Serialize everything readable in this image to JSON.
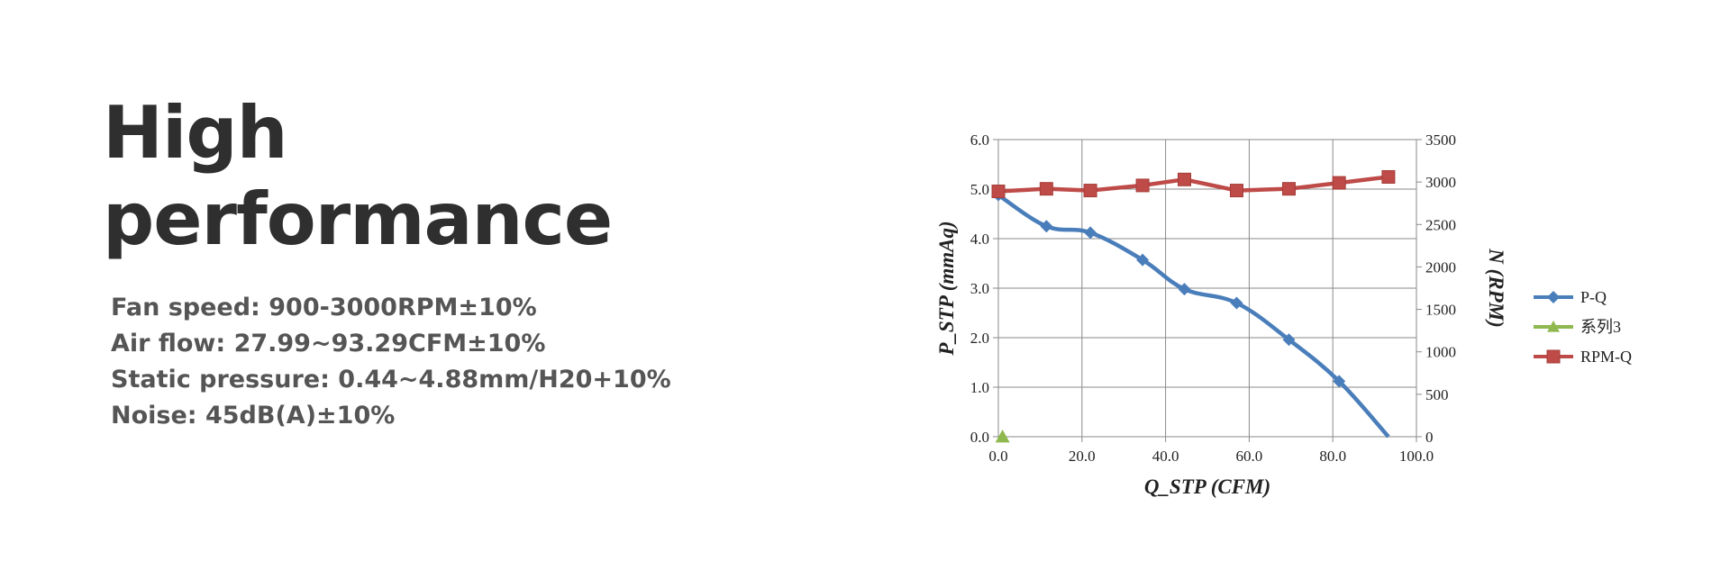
{
  "heading": {
    "line1": "High",
    "line2": "performance"
  },
  "specs": [
    "Fan speed: 900-3000RPM±10%",
    "Air flow: 27.99~93.29CFM±10%",
    "Static pressure: 0.44~4.88mm/H20+10%",
    "Noise: 45dB(A)±10%"
  ],
  "chart_data": {
    "type": "line",
    "xlabel": "Q_STP (CFM)",
    "ylabel": "P_STP (mmAq)",
    "y2label": "N (RPM)",
    "xlim": [
      0,
      100
    ],
    "ylim": [
      0,
      6
    ],
    "y2lim": [
      0,
      3500
    ],
    "x_ticks": [
      "0.0",
      "20.0",
      "40.0",
      "60.0",
      "80.0",
      "100.0"
    ],
    "y_ticks": [
      "0.0",
      "1.0",
      "2.0",
      "3.0",
      "4.0",
      "5.0",
      "6.0"
    ],
    "y2_ticks": [
      "0",
      "500",
      "1000",
      "1500",
      "2000",
      "2500",
      "3000",
      "3500"
    ],
    "grid": true,
    "legend_position": "right",
    "series": [
      {
        "name": "P-Q",
        "axis": "left",
        "color": "#4a7ebb",
        "marker": "diamond",
        "smooth": true,
        "points": [
          [
            0,
            4.88
          ],
          [
            11.5,
            4.25
          ],
          [
            22,
            4.12
          ],
          [
            34.5,
            3.57
          ],
          [
            44.5,
            2.98
          ],
          [
            57,
            2.7
          ],
          [
            69.5,
            1.96
          ],
          [
            81.5,
            1.12
          ],
          [
            93.3,
            0
          ]
        ]
      },
      {
        "name": "系列3",
        "axis": "left",
        "color": "#8fb84f",
        "marker": "triangle",
        "smooth": false,
        "points": [
          [
            1,
            0
          ]
        ]
      },
      {
        "name": "RPM-Q",
        "axis": "right",
        "color": "#be4b48",
        "marker": "square",
        "smooth": false,
        "points": [
          [
            0,
            2890
          ],
          [
            11.5,
            2920
          ],
          [
            22,
            2900
          ],
          [
            34.5,
            2960
          ],
          [
            44.5,
            3030
          ],
          [
            57,
            2900
          ],
          [
            69.5,
            2920
          ],
          [
            81.5,
            2990
          ],
          [
            93.3,
            3060
          ]
        ]
      }
    ]
  }
}
